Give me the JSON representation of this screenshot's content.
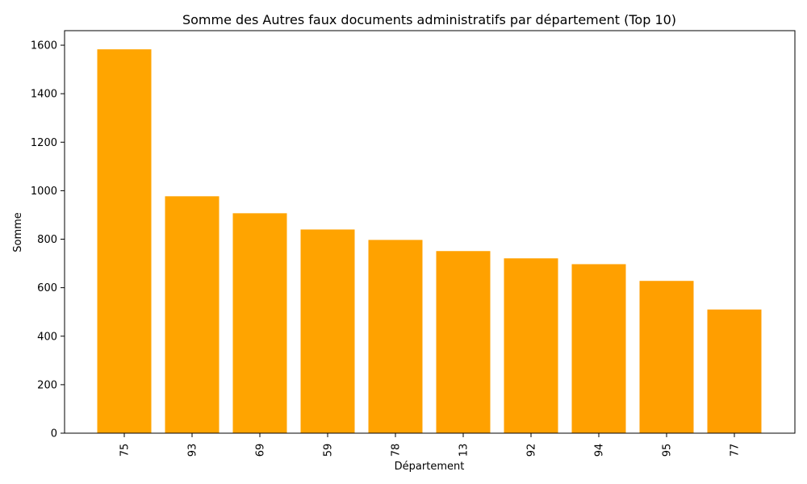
{
  "chart_data": {
    "type": "bar",
    "title": "Somme des Autres faux documents administratifs par département (Top 10)",
    "xlabel": "Département",
    "ylabel": "Somme",
    "categories": [
      "75",
      "93",
      "69",
      "59",
      "78",
      "13",
      "92",
      "94",
      "95",
      "77"
    ],
    "values": [
      1583,
      977,
      907,
      840,
      797,
      751,
      721,
      697,
      628,
      510
    ],
    "ylim": [
      0,
      1660
    ],
    "yticks": [
      0,
      200,
      400,
      600,
      800,
      1000,
      1200,
      1400,
      1600
    ],
    "grid": false,
    "bar_colors": [
      "#ffa500",
      "#ffa400",
      "#ffa400",
      "#ffa300",
      "#ffa200",
      "#ffa100",
      "#ffa100",
      "#ffa000",
      "#ff9f00",
      "#ff9e00"
    ],
    "xtick_rotation": "vertical"
  }
}
